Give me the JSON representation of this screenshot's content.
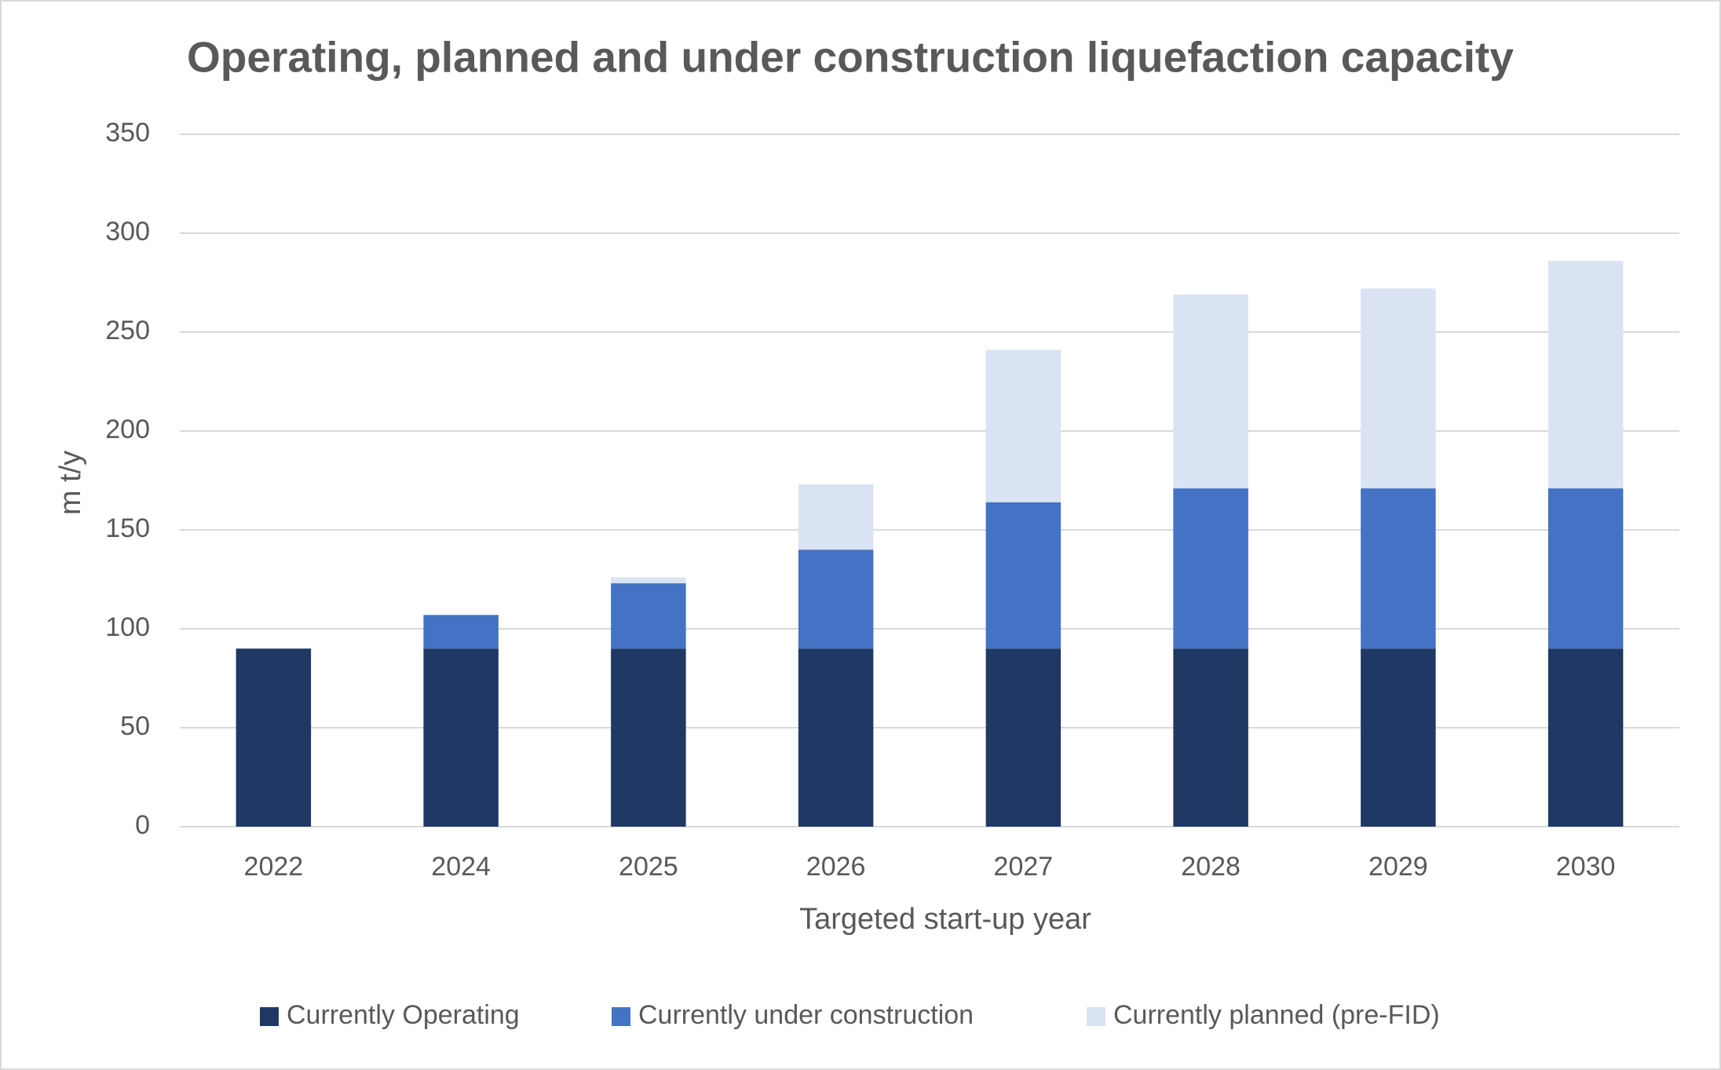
{
  "chart_data": {
    "type": "stacked_bar",
    "title": "Operating, planned and under construction liquefaction capacity",
    "x_label": "Targeted start-up year",
    "y_label": "m t/y",
    "categories": [
      "2022",
      "2024",
      "2025",
      "2026",
      "2027",
      "2028",
      "2029",
      "2030"
    ],
    "series": [
      {
        "name": "Currently Operating",
        "color": "#203864",
        "values": [
          90,
          90,
          90,
          90,
          90,
          90,
          90,
          90
        ]
      },
      {
        "name": "Currently under construction",
        "color": "#4472c4",
        "values": [
          0,
          17,
          33,
          50,
          74,
          81,
          81,
          81
        ]
      },
      {
        "name": "Currently planned (pre-FID)",
        "color": "#dae3f3",
        "values": [
          0,
          0,
          3,
          33,
          77,
          98,
          101,
          115
        ]
      }
    ],
    "ylim": [
      0,
      350
    ],
    "yticks": [
      0,
      50,
      100,
      150,
      200,
      250,
      300,
      350
    ],
    "grid": true,
    "legend": "bottom"
  }
}
